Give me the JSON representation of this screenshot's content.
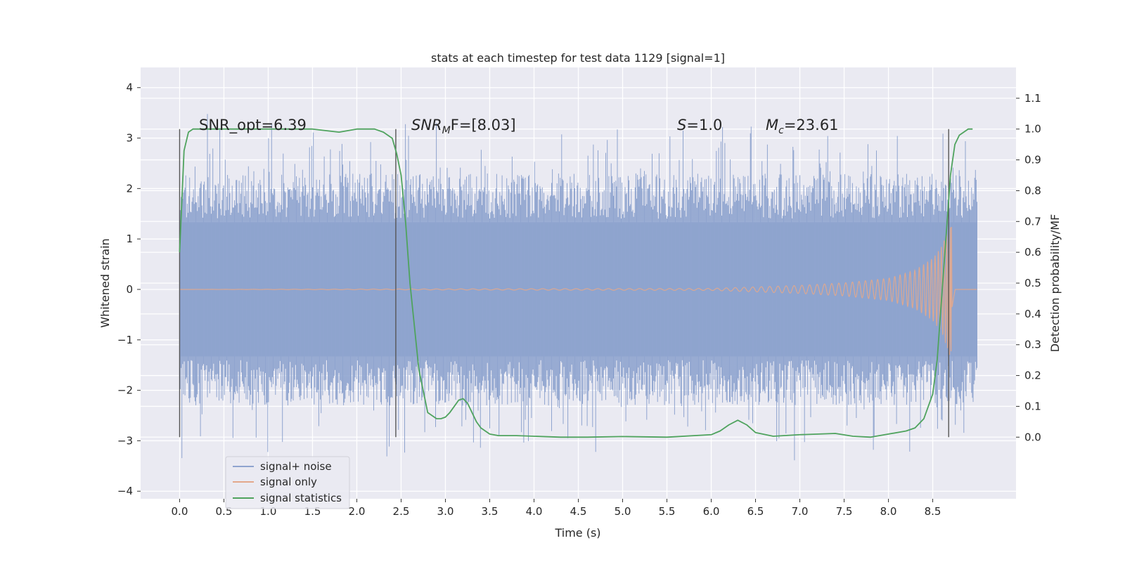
{
  "chart_data": {
    "type": "line",
    "title": "stats at each timestep for test data 1129 [signal=1]",
    "xlabel": "Time (s)",
    "ylabel": "Whitened strain",
    "y2label": "Detection probability/MF",
    "xlim": [
      -0.44,
      9.44
    ],
    "ylim": [
      -4.15,
      4.4
    ],
    "y2lim": [
      -0.2,
      1.2
    ],
    "xticks": [
      "0.0",
      "0.5",
      "1.0",
      "1.5",
      "2.0",
      "2.5",
      "3.0",
      "3.5",
      "4.0",
      "4.5",
      "5.0",
      "5.5",
      "6.0",
      "6.5",
      "7.0",
      "7.5",
      "8.0",
      "8.5"
    ],
    "yticks": [
      "−4",
      "−3",
      "−2",
      "−1",
      "0",
      "1",
      "2",
      "3",
      "4"
    ],
    "y2ticks": [
      "0.0",
      "0.1",
      "0.2",
      "0.3",
      "0.4",
      "0.5",
      "0.6",
      "0.7",
      "0.8",
      "0.9",
      "1.0",
      "1.1"
    ],
    "grid": true,
    "legend_position": "lower-left",
    "annotations": {
      "snr_opt": "SNR_opt=6.39",
      "snr_mf_main": "SNR",
      "snr_mf_sub": "M",
      "snr_mf_rest": "F=[8.03]",
      "s_main": "S",
      "s_rest": "=1.0",
      "mc_main": "M",
      "mc_sub": "c",
      "mc_rest": "=23.61"
    },
    "markers_x": [
      0.0,
      2.44,
      8.68
    ],
    "series": [
      {
        "name": "signal+ noise",
        "color": "#8fa4cf",
        "x_range": [
          0.0,
          9.0
        ],
        "typical_abs_amplitude": 1.4,
        "peak_range": [
          -3.7,
          4.0
        ]
      },
      {
        "name": "signal only",
        "color": "#e3a88b",
        "x_range": [
          0.0,
          9.0
        ],
        "envelope": {
          "x": [
            0.0,
            6.0,
            7.0,
            7.5,
            8.0,
            8.3,
            8.5,
            8.6,
            8.7,
            9.0
          ],
          "amp": [
            0.0,
            0.02,
            0.08,
            0.13,
            0.22,
            0.38,
            0.62,
            0.85,
            1.35,
            0.0
          ]
        }
      },
      {
        "name": "signal statistics",
        "color": "#4fa35e",
        "x": [
          0.0,
          0.05,
          0.1,
          0.15,
          0.2,
          0.3,
          0.5,
          1.0,
          1.5,
          1.8,
          2.0,
          2.2,
          2.3,
          2.4,
          2.45,
          2.5,
          2.55,
          2.6,
          2.7,
          2.8,
          2.85,
          2.9,
          2.95,
          3.0,
          3.05,
          3.1,
          3.15,
          3.2,
          3.25,
          3.3,
          3.35,
          3.4,
          3.5,
          3.6,
          3.8,
          4.0,
          4.3,
          4.6,
          5.0,
          5.5,
          6.0,
          6.1,
          6.2,
          6.3,
          6.4,
          6.5,
          6.7,
          7.0,
          7.4,
          7.6,
          7.8,
          8.0,
          8.2,
          8.3,
          8.4,
          8.5,
          8.55,
          8.6,
          8.7,
          8.75,
          8.8,
          8.9,
          8.95
        ],
        "y": [
          0.6,
          0.93,
          0.99,
          1.0,
          1.0,
          1.0,
          1.0,
          1.0,
          1.0,
          0.99,
          1.0,
          1.0,
          0.99,
          0.97,
          0.92,
          0.85,
          0.7,
          0.5,
          0.22,
          0.08,
          0.07,
          0.06,
          0.06,
          0.065,
          0.08,
          0.1,
          0.12,
          0.125,
          0.11,
          0.08,
          0.05,
          0.03,
          0.01,
          0.005,
          0.005,
          0.003,
          0.0,
          0.0,
          0.002,
          0.0,
          0.008,
          0.02,
          0.04,
          0.055,
          0.04,
          0.015,
          0.003,
          0.008,
          0.012,
          0.003,
          0.0,
          0.01,
          0.02,
          0.03,
          0.06,
          0.14,
          0.25,
          0.45,
          0.85,
          0.95,
          0.98,
          1.0,
          1.0
        ]
      }
    ]
  }
}
